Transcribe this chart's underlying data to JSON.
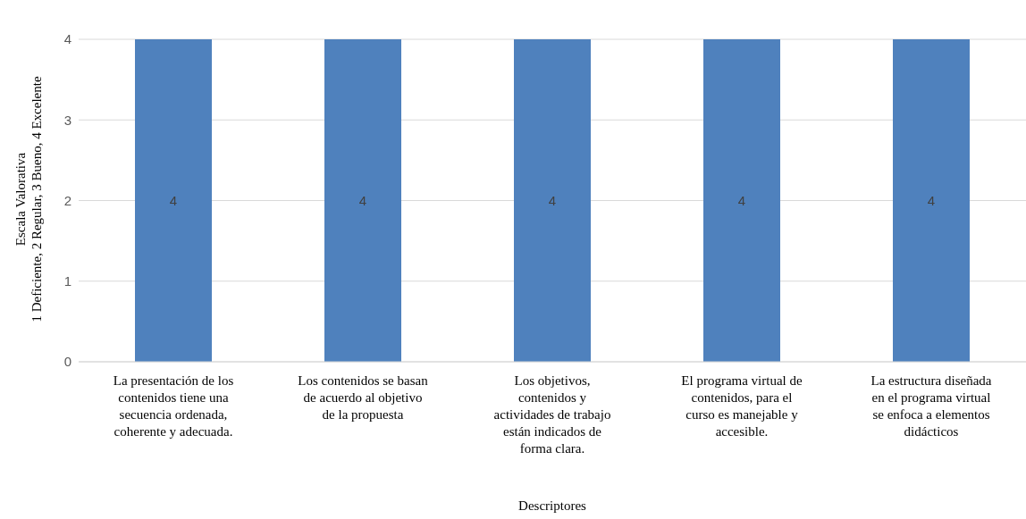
{
  "chart_data": {
    "type": "bar",
    "categories": [
      "La presentación de los contenidos tiene una secuencia ordenada, coherente y adecuada.",
      "Los contenidos se basan de acuerdo al objetivo de la propuesta",
      "Los objetivos, contenidos y actividades de trabajo están indicados de forma clara.",
      "El programa virtual de contenidos, para el curso es manejable y accesible.",
      "La estructura diseñada en el programa virtual se enfoca a elementos didácticos"
    ],
    "values": [
      4,
      4,
      4,
      4,
      4
    ],
    "color": "#4f81bd",
    "xlabel": "Descriptores",
    "ylabel": "Escala Valorativa\n1 Deficiente,  2 Regular, 3 Bueno, 4 Excelente",
    "ylim": [
      0,
      4
    ],
    "yticks": [
      0,
      1,
      2,
      3,
      4
    ],
    "grid": "y",
    "data_labels": true
  }
}
